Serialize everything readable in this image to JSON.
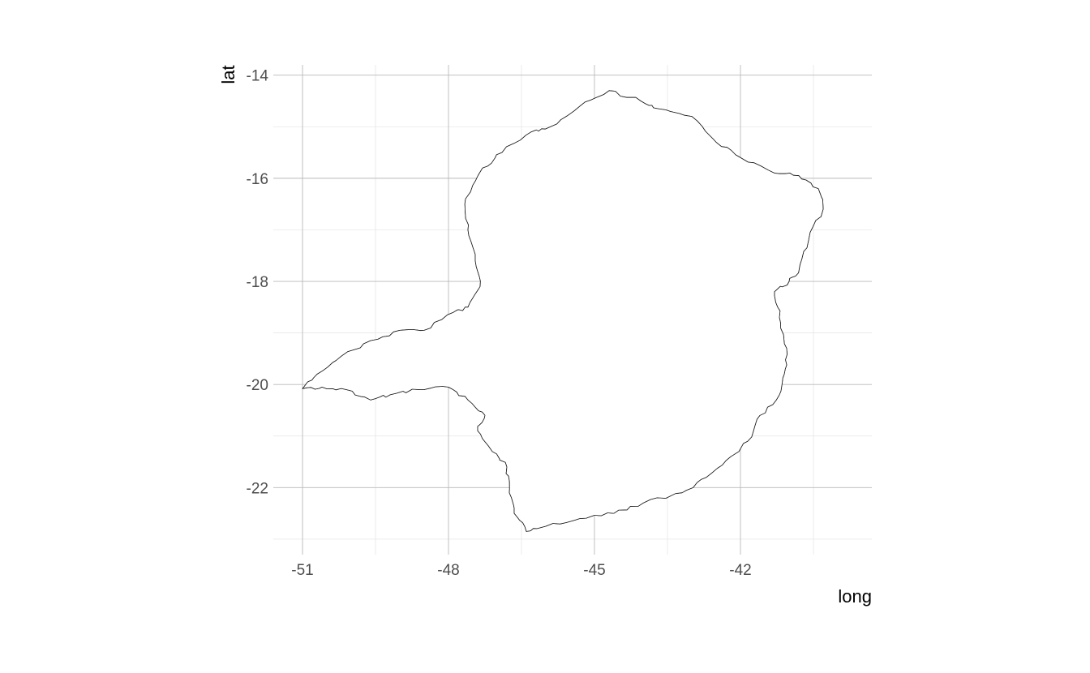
{
  "chart_data": {
    "type": "map",
    "title": "",
    "xlabel": "long",
    "ylabel": "lat",
    "xlim": [
      -51.6,
      -39.3
    ],
    "ylim": [
      -23.3,
      -13.8
    ],
    "x_ticks": [
      -51,
      -48,
      -45,
      -42
    ],
    "y_ticks": [
      -14,
      -16,
      -18,
      -20,
      -22
    ],
    "x_tick_labels": [
      "-51",
      "-48",
      "-45",
      "-42"
    ],
    "y_tick_labels": [
      "-14",
      "-16",
      "-18",
      "-20",
      "-22"
    ],
    "grid": true,
    "legend": "none",
    "outline_color": "#1a1a1a",
    "fill_color": "#ffffff",
    "region_outline": [
      [
        -51.0,
        -20.08
      ],
      [
        -50.7,
        -19.8
      ],
      [
        -50.2,
        -19.45
      ],
      [
        -49.6,
        -19.15
      ],
      [
        -49.0,
        -18.95
      ],
      [
        -48.5,
        -18.95
      ],
      [
        -47.9,
        -18.6
      ],
      [
        -47.6,
        -18.5
      ],
      [
        -47.35,
        -18.1
      ],
      [
        -47.45,
        -17.6
      ],
      [
        -47.6,
        -17.0
      ],
      [
        -47.65,
        -16.4
      ],
      [
        -47.3,
        -15.8
      ],
      [
        -46.9,
        -15.5
      ],
      [
        -46.3,
        -15.1
      ],
      [
        -45.9,
        -15.0
      ],
      [
        -45.3,
        -14.6
      ],
      [
        -44.7,
        -14.3
      ],
      [
        -44.05,
        -14.5
      ],
      [
        -43.7,
        -14.65
      ],
      [
        -43.0,
        -14.8
      ],
      [
        -42.5,
        -15.3
      ],
      [
        -42.0,
        -15.6
      ],
      [
        -41.3,
        -15.9
      ],
      [
        -40.8,
        -15.95
      ],
      [
        -40.4,
        -16.2
      ],
      [
        -40.3,
        -16.6
      ],
      [
        -40.6,
        -17.2
      ],
      [
        -40.8,
        -17.8
      ],
      [
        -41.0,
        -18.0
      ],
      [
        -41.3,
        -18.2
      ],
      [
        -41.2,
        -18.7
      ],
      [
        -41.05,
        -19.3
      ],
      [
        -41.1,
        -19.8
      ],
      [
        -41.2,
        -20.2
      ],
      [
        -41.6,
        -20.6
      ],
      [
        -41.85,
        -21.1
      ],
      [
        -42.2,
        -21.4
      ],
      [
        -42.7,
        -21.8
      ],
      [
        -43.2,
        -22.1
      ],
      [
        -44.0,
        -22.3
      ],
      [
        -44.6,
        -22.5
      ],
      [
        -45.3,
        -22.6
      ],
      [
        -46.0,
        -22.75
      ],
      [
        -46.4,
        -22.85
      ],
      [
        -46.65,
        -22.5
      ],
      [
        -46.75,
        -22.1
      ],
      [
        -46.8,
        -21.6
      ],
      [
        -47.1,
        -21.3
      ],
      [
        -47.4,
        -20.9
      ],
      [
        -47.25,
        -20.6
      ],
      [
        -47.6,
        -20.3
      ],
      [
        -48.0,
        -20.05
      ],
      [
        -48.6,
        -20.1
      ],
      [
        -49.2,
        -20.2
      ],
      [
        -49.6,
        -20.3
      ],
      [
        -50.1,
        -20.1
      ],
      [
        -50.6,
        -20.05
      ],
      [
        -51.0,
        -20.08
      ]
    ]
  }
}
